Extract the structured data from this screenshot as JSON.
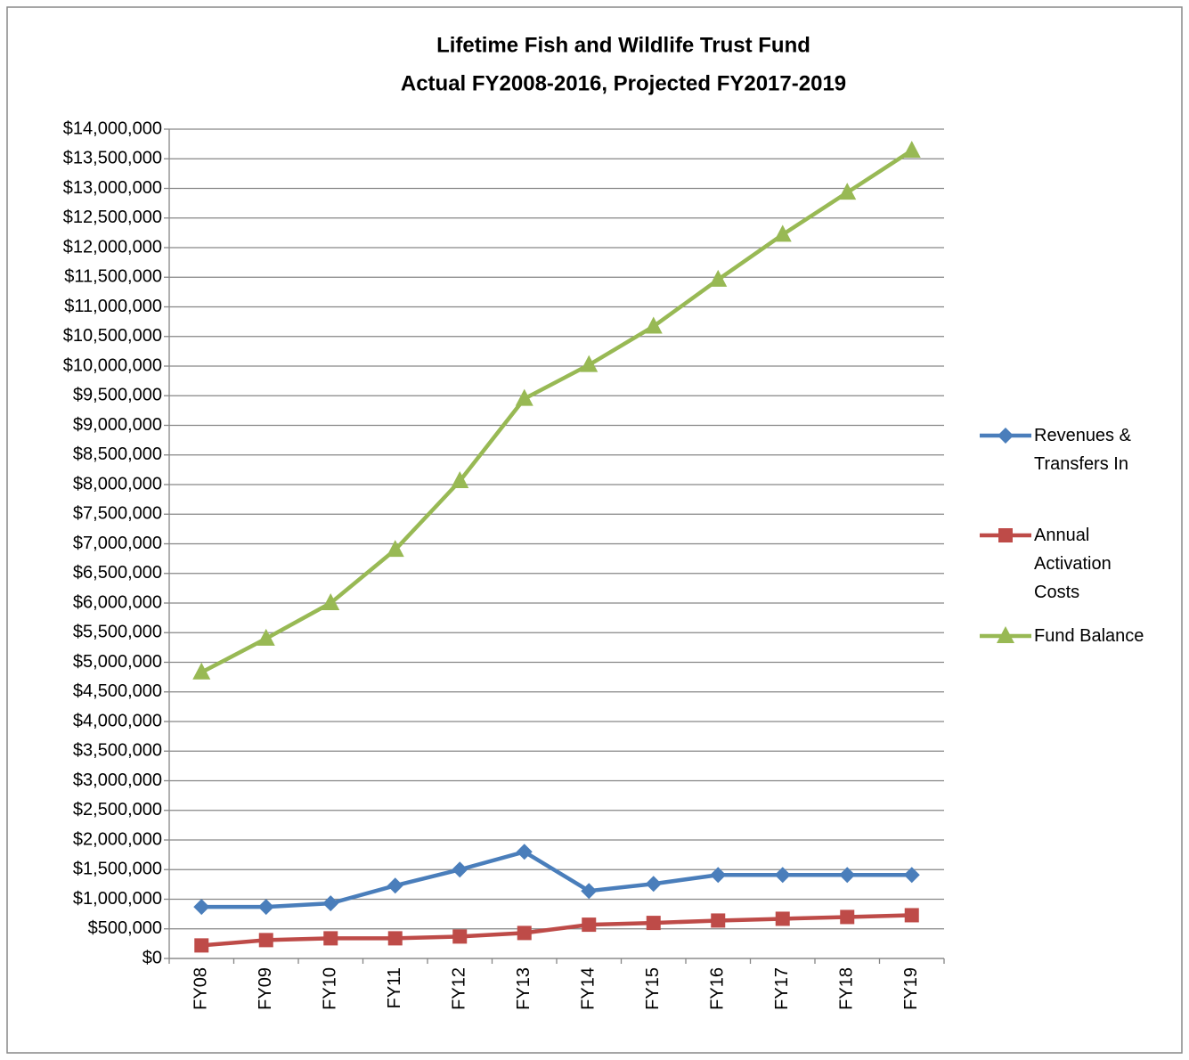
{
  "chart_data": {
    "type": "line",
    "title": "Lifetime Fish and Wildlife Trust Fund",
    "subtitle": "Actual FY2008-2016, Projected FY2017-2019",
    "categories": [
      "FY08",
      "FY09",
      "FY10",
      "FY11",
      "FY12",
      "FY13",
      "FY14",
      "FY15",
      "FY16",
      "FY17",
      "FY18",
      "FY19"
    ],
    "series": [
      {
        "name": "Revenues & Transfers In",
        "color": "#4a7ebb",
        "marker": "diamond",
        "values": [
          870000,
          870000,
          930000,
          1230000,
          1500000,
          1800000,
          1140000,
          1260000,
          1410000,
          1410000,
          1410000,
          1410000
        ]
      },
      {
        "name": "Annual Activation Costs",
        "color": "#be4b48",
        "marker": "square",
        "values": [
          220000,
          310000,
          340000,
          340000,
          370000,
          430000,
          570000,
          600000,
          640000,
          670000,
          700000,
          730000
        ]
      },
      {
        "name": "Fund Balance",
        "color": "#98b954",
        "marker": "triangle",
        "values": [
          4830000,
          5400000,
          6000000,
          6900000,
          8060000,
          9450000,
          10020000,
          10670000,
          11460000,
          12220000,
          12930000,
          13640000
        ]
      }
    ],
    "ylim": [
      0,
      14000000
    ],
    "yticks": [
      {
        "value": 0,
        "label": "$0"
      },
      {
        "value": 500000,
        "label": "$500,000"
      },
      {
        "value": 1000000,
        "label": "$1,000,000"
      },
      {
        "value": 1500000,
        "label": "$1,500,000"
      },
      {
        "value": 2000000,
        "label": "$2,000,000"
      },
      {
        "value": 2500000,
        "label": "$2,500,000"
      },
      {
        "value": 3000000,
        "label": "$3,000,000"
      },
      {
        "value": 3500000,
        "label": "$3,500,000"
      },
      {
        "value": 4000000,
        "label": "$4,000,000"
      },
      {
        "value": 4500000,
        "label": "$4,500,000"
      },
      {
        "value": 5000000,
        "label": "$5,000,000"
      },
      {
        "value": 5500000,
        "label": "$5,500,000"
      },
      {
        "value": 6000000,
        "label": "$6,000,000"
      },
      {
        "value": 6500000,
        "label": "$6,500,000"
      },
      {
        "value": 7000000,
        "label": "$7,000,000"
      },
      {
        "value": 7500000,
        "label": "$7,500,000"
      },
      {
        "value": 8000000,
        "label": "$8,000,000"
      },
      {
        "value": 8500000,
        "label": "$8,500,000"
      },
      {
        "value": 9000000,
        "label": "$9,000,000"
      },
      {
        "value": 9500000,
        "label": "$9,500,000"
      },
      {
        "value": 10000000,
        "label": "$10,000,000"
      },
      {
        "value": 10500000,
        "label": "$10,500,000"
      },
      {
        "value": 11000000,
        "label": "$11,000,000"
      },
      {
        "value": 11500000,
        "label": "$11,500,000"
      },
      {
        "value": 12000000,
        "label": "$12,000,000"
      },
      {
        "value": 12500000,
        "label": "$12,500,000"
      },
      {
        "value": 13000000,
        "label": "$13,000,000"
      },
      {
        "value": 13500000,
        "label": "$13,500,000"
      },
      {
        "value": 14000000,
        "label": "$14,000,000"
      }
    ],
    "grid": true,
    "legend": "right"
  }
}
